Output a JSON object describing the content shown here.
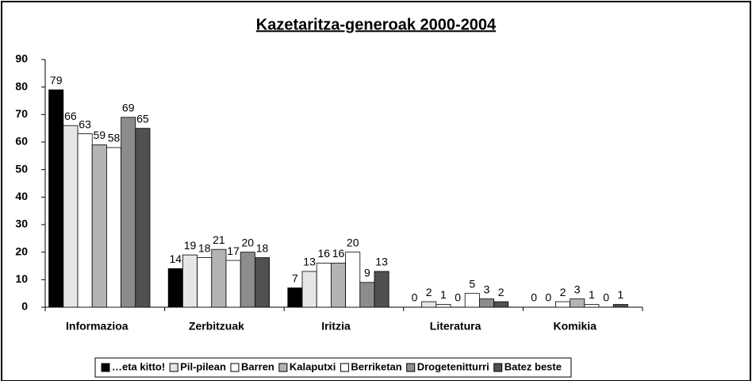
{
  "chart_data": {
    "type": "bar",
    "title": "Kazetaritza-generoak 2000-2004",
    "categories": [
      "Informazioa",
      "Zerbitzuak",
      "Iritzia",
      "Literatura",
      "Komikia"
    ],
    "series": [
      {
        "name": "…eta kitto!",
        "color": "#000000",
        "values": [
          79,
          14,
          7,
          0,
          0
        ]
      },
      {
        "name": "Pil-pilean",
        "color": "#e6e6e6",
        "values": [
          66,
          19,
          13,
          2,
          0
        ]
      },
      {
        "name": "Barren",
        "color": "#ffffff",
        "values": [
          63,
          18,
          16,
          1,
          2
        ]
      },
      {
        "name": "Kalaputxi",
        "color": "#b4b4b4",
        "values": [
          59,
          21,
          16,
          0,
          3
        ]
      },
      {
        "name": "Berriketan",
        "color": "#ffffff",
        "values": [
          58,
          17,
          20,
          5,
          1
        ]
      },
      {
        "name": "Drogetenitturri",
        "color": "#8c8c8c",
        "values": [
          69,
          20,
          9,
          3,
          0
        ]
      },
      {
        "name": "Batez beste",
        "color": "#505050",
        "values": [
          65,
          18,
          13,
          2,
          1
        ]
      }
    ],
    "ylim": [
      0,
      90
    ],
    "yticks": [
      0,
      10,
      20,
      30,
      40,
      50,
      60,
      70,
      80,
      90
    ],
    "legend": "bottom"
  }
}
